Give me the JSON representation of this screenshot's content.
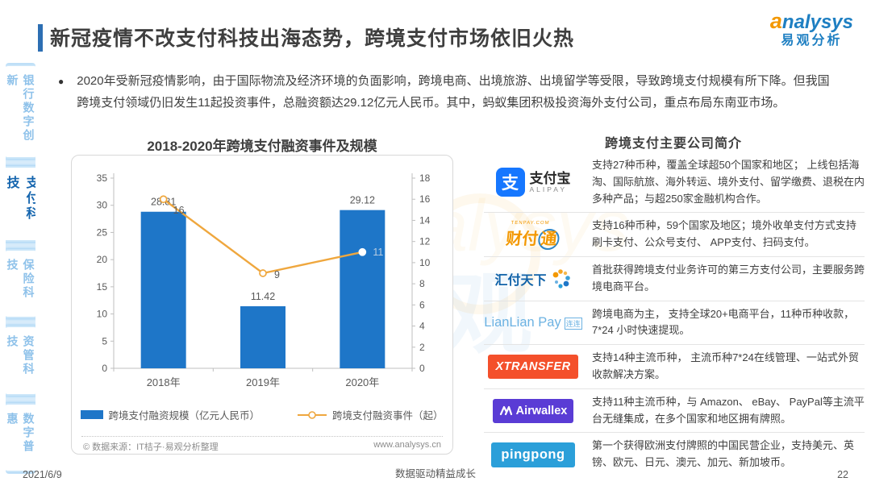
{
  "header": {
    "title": "新冠疫情不改支付科技出海态势，跨境支付市场依旧火热",
    "logo": {
      "en_a": "a",
      "en_rest": "nalysys",
      "cn": "易观分析"
    }
  },
  "sidebar": {
    "items": [
      {
        "label": "银行数字创新",
        "active": false
      },
      {
        "label": "支付科技",
        "active": true
      },
      {
        "label": "保险科技",
        "active": false
      },
      {
        "label": "资管科技",
        "active": false
      },
      {
        "label": "数字普惠",
        "active": false
      }
    ]
  },
  "bullet": {
    "marker": "●",
    "text": "2020年受新冠疫情影响，由于国际物流及经济环境的负面影响，跨境电商、出境旅游、出境留学等受限，导致跨境支付规模有所下降。但我国跨境支付领域仍旧发生11起投资事件，总融资额达29.12亿元人民币。其中，蚂蚁集团积极投资海外支付公司，重点布局东南亚市场。"
  },
  "chart_data": {
    "type": "bar",
    "title": "2018-2020年跨境支付融资事件及规模",
    "categories": [
      "2018年",
      "2019年",
      "2020年"
    ],
    "series": [
      {
        "name": "跨境支付融资规模（亿元人民币）",
        "type": "bar",
        "axis": "left",
        "values": [
          28.81,
          11.42,
          29.12
        ]
      },
      {
        "name": "跨境支付融资事件（起）",
        "type": "line",
        "axis": "right",
        "values": [
          16,
          9,
          11
        ]
      }
    ],
    "y_left": {
      "min": 0,
      "max": 35,
      "step": 5
    },
    "y_right": {
      "min": 0,
      "max": 18,
      "step": 2
    },
    "grid": false,
    "legend_position": "bottom",
    "source_left": "© 数据来源：IT桔子·易观分析整理",
    "source_right": "www.analysys.cn"
  },
  "companies": {
    "title": "跨境支付主要公司简介",
    "rows": [
      {
        "name": "支付宝",
        "logo_glyph": "支",
        "logo_main": "支付宝",
        "logo_sub": "ALIPAY",
        "desc": "支持27种币种，覆盖全球超50个国家和地区； 上线包括海淘、国际航旅、海外转运、境外支付、留学缴费、退税在内多种产品；与超250家金融机构合作。"
      },
      {
        "name": "财付通",
        "logo_sub": "TENPAY.COM",
        "logo_p1": "财付",
        "logo_p2": "通",
        "desc": "支持16种币种，59个国家及地区；境外收单支付方式支持刷卡支付、公众号支付、 APP支付、扫码支付。"
      },
      {
        "name": "汇付天下",
        "logo_main": "汇付天下",
        "desc": "首批获得跨境支付业务许可的第三方支付公司，主要服务跨境电商平台。"
      },
      {
        "name": "LianLian Pay",
        "logo_main": "LianLian Pay",
        "logo_sub": "连连",
        "desc": "跨境电商为主， 支持全球20+电商平台，11种币种收款，7*24 小时快速提现。"
      },
      {
        "name": "XTRANSFER",
        "logo_main": "XTRANSFER",
        "desc": "支持14种主流币种， 主流币种7*24在线管理、一站式外贸收款解决方案。"
      },
      {
        "name": "Airwallex",
        "logo_main": "Airwallex",
        "desc": "支持11种主流币种，与 Amazon、 eBay、 PayPal等主流平台无缝集成，在多个国家和地区拥有牌照。"
      },
      {
        "name": "pingpong",
        "logo_main": "pingpong",
        "desc": "第一个获得欧洲支付牌照的中国民营企业，支持美元、英镑、欧元、日元、澳元、加元、新加坡币。"
      }
    ]
  },
  "watermark": {
    "cn": "易观",
    "en": "analysys"
  },
  "footer": {
    "date": "2021/6/9",
    "slogan": "数据驱动精益成长",
    "page": "22"
  },
  "colors": {
    "bar": "#1E76C8",
    "line": "#EFA73E",
    "title_accent": "#2D6FB3",
    "sidebar_active": "#1565AE",
    "sidebar_inactive": "#8FC2EA",
    "logo_orange": "#F39800",
    "logo_blue": "#1E7FC2",
    "alipay": "#1677FF",
    "tenpay": "#F39800",
    "huifu": "#1062A8",
    "lianlian": "#6CB2E2",
    "xtransfer": "#F4502B",
    "airwallex": "#5A3CD5",
    "pingpong": "#2B9FD9"
  }
}
